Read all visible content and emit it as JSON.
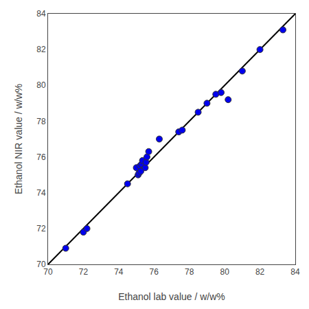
{
  "chart_data": {
    "type": "scatter",
    "xlabel": "Ethanol lab value / w/w%",
    "ylabel": "Ethanol NIR value / w/w%",
    "series": [
      {
        "type": "line",
        "color": "#000000",
        "x": [
          70,
          84
        ],
        "values": [
          70,
          84
        ]
      },
      {
        "type": "scatter",
        "color": "#0000ee",
        "x": [
          71.0,
          72.0,
          72.2,
          74.5,
          75.0,
          75.1,
          75.15,
          75.2,
          75.25,
          75.3,
          75.35,
          75.5,
          75.55,
          75.6,
          75.7,
          76.3,
          77.4,
          77.6,
          78.5,
          79.0,
          79.5,
          79.8,
          80.2,
          81.0,
          82.0,
          83.3
        ],
        "values": [
          70.9,
          71.8,
          72.0,
          74.5,
          75.4,
          75.0,
          75.1,
          75.5,
          75.2,
          75.6,
          75.8,
          75.4,
          75.7,
          76.0,
          76.3,
          77.0,
          77.4,
          77.5,
          78.5,
          79.0,
          79.5,
          79.6,
          79.2,
          80.8,
          82.0,
          83.1
        ]
      }
    ],
    "xlim": [
      70,
      84
    ],
    "ylim": [
      70,
      84
    ],
    "xticks": [
      70,
      72,
      74,
      76,
      78,
      80,
      82,
      84
    ],
    "yticks": [
      70,
      72,
      74,
      76,
      78,
      80,
      82,
      84
    ],
    "grid": false
  }
}
